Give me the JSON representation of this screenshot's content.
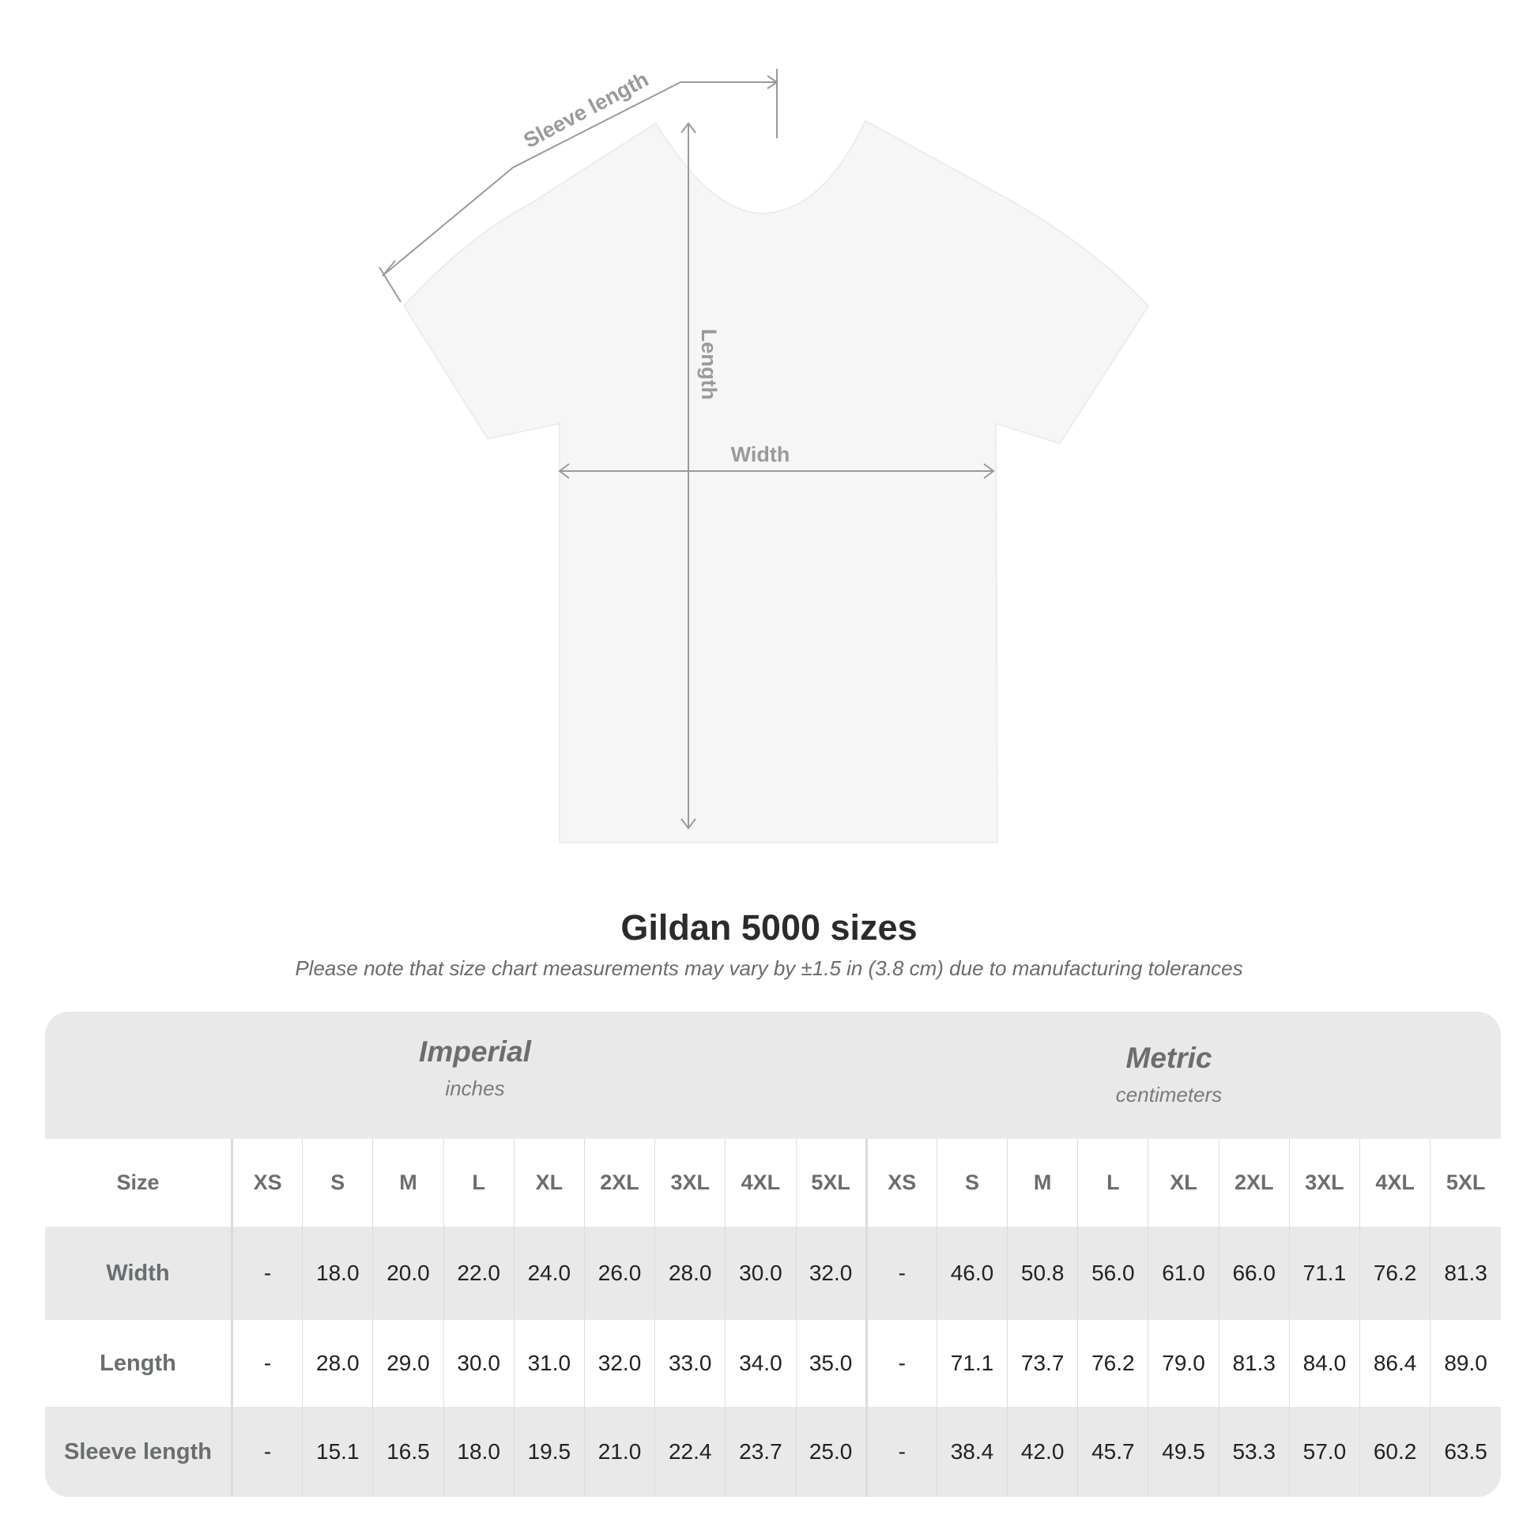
{
  "diagram_labels": {
    "sleeve_length": "Sleeve length",
    "length": "Length",
    "width": "Width"
  },
  "title": "Gildan 5000 sizes",
  "note": "Please note that size chart measurements may vary by ±1.5 in (3.8 cm) due to manufacturing tolerances",
  "imperial": {
    "name": "Imperial",
    "unit": "inches"
  },
  "metric": {
    "name": "Metric",
    "unit": "centimeters"
  },
  "size_label": "Size",
  "sizes": [
    "XS",
    "S",
    "M",
    "L",
    "XL",
    "2XL",
    "3XL",
    "4XL",
    "5XL"
  ],
  "rows": [
    {
      "label": "Width",
      "imperial": [
        "-",
        "18.0",
        "20.0",
        "22.0",
        "24.0",
        "26.0",
        "28.0",
        "30.0",
        "32.0"
      ],
      "metric": [
        "-",
        "46.0",
        "50.8",
        "56.0",
        "61.0",
        "66.0",
        "71.1",
        "76.2",
        "81.3"
      ]
    },
    {
      "label": "Length",
      "imperial": [
        "-",
        "28.0",
        "29.0",
        "30.0",
        "31.0",
        "32.0",
        "33.0",
        "34.0",
        "35.0"
      ],
      "metric": [
        "-",
        "71.1",
        "73.7",
        "76.2",
        "79.0",
        "81.3",
        "84.0",
        "86.4",
        "89.0"
      ]
    },
    {
      "label": "Sleeve length",
      "imperial": [
        "-",
        "15.1",
        "16.5",
        "18.0",
        "19.5",
        "21.0",
        "22.4",
        "23.7",
        "25.0"
      ],
      "metric": [
        "-",
        "38.4",
        "42.0",
        "45.7",
        "49.5",
        "53.3",
        "57.0",
        "60.2",
        "63.5"
      ]
    }
  ],
  "colors": {
    "panel": "#e9e9e9",
    "label_text": "#6a6e70",
    "measure_line": "#9a9a9a"
  }
}
